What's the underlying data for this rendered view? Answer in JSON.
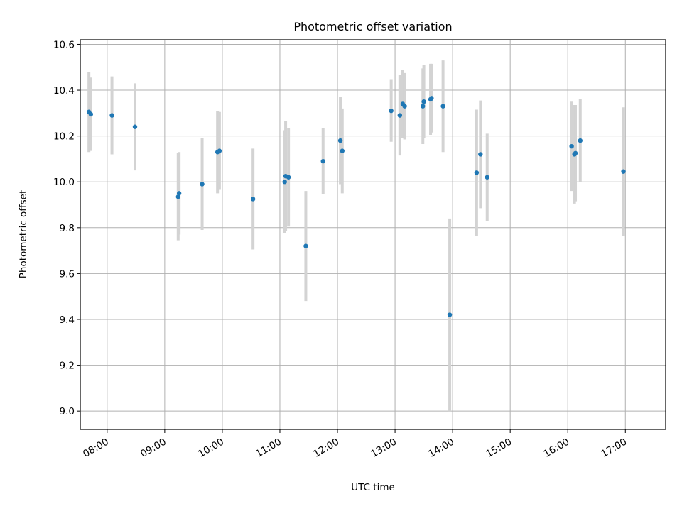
{
  "chart_data": {
    "type": "scatter",
    "title": "Photometric offset variation",
    "xlabel": "UTC time",
    "ylabel": "Photometric offset",
    "x_ticks": [
      "08:00",
      "09:00",
      "10:00",
      "11:00",
      "12:00",
      "13:00",
      "14:00",
      "15:00",
      "16:00",
      "17:00"
    ],
    "y_ticks": [
      "9.0",
      "9.2",
      "9.4",
      "9.6",
      "9.8",
      "10.0",
      "10.2",
      "10.4",
      "10.6"
    ],
    "xlim": [
      "07:32",
      "17:42"
    ],
    "ylim": [
      8.92,
      10.62
    ],
    "grid": true,
    "colors": {
      "points": "#1f77b4",
      "errorbars": "#d3d3d3"
    },
    "points": [
      {
        "time": "07:41",
        "offset": 10.305,
        "error": 0.175
      },
      {
        "time": "07:43",
        "offset": 10.295,
        "error": 0.16
      },
      {
        "time": "08:05",
        "offset": 10.29,
        "error": 0.17
      },
      {
        "time": "08:29",
        "offset": 10.24,
        "error": 0.19
      },
      {
        "time": "09:14",
        "offset": 9.935,
        "error": 0.19
      },
      {
        "time": "09:15",
        "offset": 9.95,
        "error": 0.18
      },
      {
        "time": "09:39",
        "offset": 9.99,
        "error": 0.2
      },
      {
        "time": "09:55",
        "offset": 10.13,
        "error": 0.18
      },
      {
        "time": "09:57",
        "offset": 10.135,
        "error": 0.17
      },
      {
        "time": "10:32",
        "offset": 9.925,
        "error": 0.22
      },
      {
        "time": "11:05",
        "offset": 10.0,
        "error": 0.225
      },
      {
        "time": "11:06",
        "offset": 10.025,
        "error": 0.24
      },
      {
        "time": "11:09",
        "offset": 10.02,
        "error": 0.215
      },
      {
        "time": "11:27",
        "offset": 9.72,
        "error": 0.24
      },
      {
        "time": "11:45",
        "offset": 10.09,
        "error": 0.145
      },
      {
        "time": "12:03",
        "offset": 10.18,
        "error": 0.19
      },
      {
        "time": "12:05",
        "offset": 10.135,
        "error": 0.185
      },
      {
        "time": "12:56",
        "offset": 10.31,
        "error": 0.135
      },
      {
        "time": "13:05",
        "offset": 10.29,
        "error": 0.175
      },
      {
        "time": "13:08",
        "offset": 10.34,
        "error": 0.15
      },
      {
        "time": "13:10",
        "offset": 10.33,
        "error": 0.145
      },
      {
        "time": "13:29",
        "offset": 10.33,
        "error": 0.165
      },
      {
        "time": "13:30",
        "offset": 10.35,
        "error": 0.16
      },
      {
        "time": "13:37",
        "offset": 10.36,
        "error": 0.155
      },
      {
        "time": "13:38",
        "offset": 10.365,
        "error": 0.15
      },
      {
        "time": "13:50",
        "offset": 10.33,
        "error": 0.2
      },
      {
        "time": "13:57",
        "offset": 9.42,
        "error": 0.42
      },
      {
        "time": "14:25",
        "offset": 10.04,
        "error": 0.275
      },
      {
        "time": "14:29",
        "offset": 10.12,
        "error": 0.235
      },
      {
        "time": "14:36",
        "offset": 10.02,
        "error": 0.19
      },
      {
        "time": "16:04",
        "offset": 10.155,
        "error": 0.195
      },
      {
        "time": "16:07",
        "offset": 10.12,
        "error": 0.215
      },
      {
        "time": "16:08",
        "offset": 10.125,
        "error": 0.21
      },
      {
        "time": "16:13",
        "offset": 10.18,
        "error": 0.18
      },
      {
        "time": "16:58",
        "offset": 10.045,
        "error": 0.28
      }
    ]
  }
}
